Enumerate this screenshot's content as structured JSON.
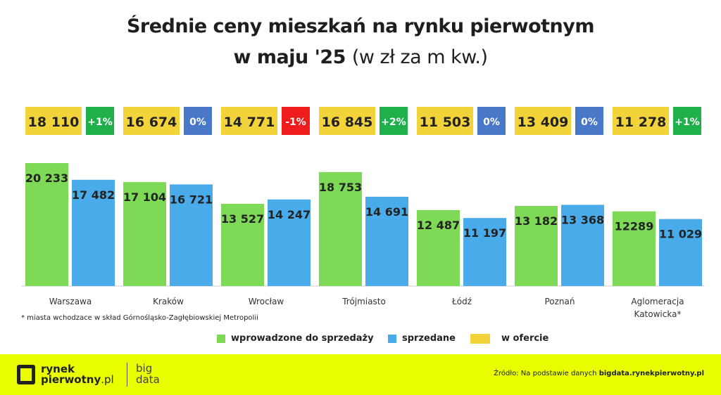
{
  "chart_data": {
    "type": "bar",
    "title_line1": "Średnie ceny mieszkań na rynku pierwotnym",
    "title_line2_bold": "w maju '25",
    "title_line2_light": "(w zł za m kw.)",
    "categories": [
      "Warszawa",
      "Kraków",
      "Wrocław",
      "Trójmiasto",
      "Łódź",
      "Poznań",
      "Aglomeracja Katowicka*"
    ],
    "series": [
      {
        "name": "wprowadzone do sprzedaży",
        "color": "#7ed957",
        "values": [
          20233,
          17104,
          13527,
          18753,
          12487,
          13182,
          12289
        ],
        "labels": [
          "20 233",
          "17 104",
          "13 527",
          "18 753",
          "12 487",
          "13 182",
          "12289"
        ]
      },
      {
        "name": "sprzedane",
        "color": "#4aabea",
        "values": [
          17482,
          16721,
          14247,
          14691,
          11197,
          13368,
          11029
        ],
        "labels": [
          "17 482",
          "16 721",
          "14 247",
          "14 691",
          "11 197",
          "13 368",
          "11 029"
        ]
      },
      {
        "name": "w ofercie",
        "color": "#f2d43a",
        "values": [
          18110,
          16674,
          14771,
          16845,
          11503,
          13409,
          11278
        ],
        "labels": [
          "18 110",
          "16 674",
          "14 771",
          "16 845",
          "11 503",
          "13 409",
          "11 278"
        ]
      }
    ],
    "changes": [
      {
        "label": "+1%",
        "color": "#1fb04b"
      },
      {
        "label": "0%",
        "color": "#4a78c8"
      },
      {
        "label": "-1%",
        "color": "#ee1c1c"
      },
      {
        "label": "+2%",
        "color": "#1fb04b"
      },
      {
        "label": "0%",
        "color": "#4a78c8"
      },
      {
        "label": "0%",
        "color": "#4a78c8"
      },
      {
        "label": "+1%",
        "color": "#1fb04b"
      }
    ],
    "ylim": [
      0,
      21000
    ],
    "grid": false,
    "legend_position": "bottom"
  },
  "footnote": "* miasta wchodzace w skład Górnośląsko-Zagłębiowskiej Metropolii",
  "footer": {
    "logo_line1": "rynek",
    "logo_line2": "pierwotny",
    "logo_suffix": ".pl",
    "bigdata_line1": "big",
    "bigdata_line2": "data",
    "source_prefix": "Źródło: Na podstawie danych",
    "source_site": "bigdata.rynekpierwotny.pl"
  }
}
